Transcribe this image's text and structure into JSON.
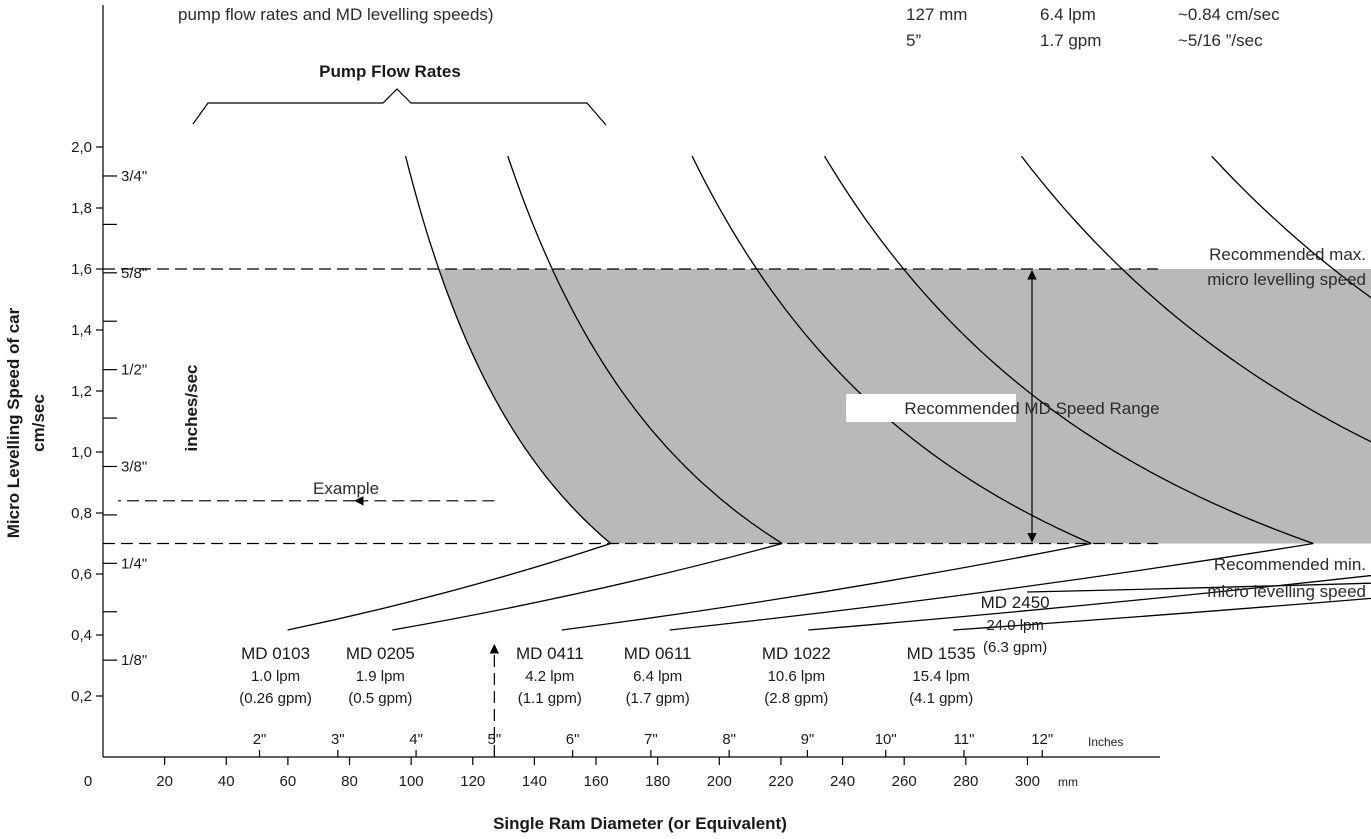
{
  "top_note": {
    "left_text": "pump flow rates and MD levelling speeds)",
    "table": [
      [
        "127 mm",
        "6.4 lpm",
        "~0.84 cm/sec"
      ],
      [
        "5”",
        "1.7 gpm",
        "~5/16 ”/sec"
      ]
    ]
  },
  "chart_data": {
    "type": "line",
    "title": "Pump Flow Rates",
    "xlabel": "Single Ram Diameter (or Equivalent)",
    "ylabel_line1": "Micro Levelling Speed of car",
    "ylabel_line2": "cm/sec",
    "ylabel_inches": "inches/sec",
    "xlim_mm": [
      0,
      330
    ],
    "ylim_cms": [
      0.05,
      2.05
    ],
    "x_ticks_mm": [
      0,
      20,
      40,
      60,
      80,
      100,
      120,
      140,
      160,
      180,
      200,
      220,
      240,
      260,
      280,
      300
    ],
    "x_tick_labels_mm": [
      "0",
      "20",
      "40",
      "60",
      "80",
      "100",
      "120",
      "140",
      "160",
      "180",
      "200",
      "220",
      "240",
      "260",
      "280",
      "300"
    ],
    "x_unit_mm": "mm",
    "x_ticks_in": [
      2,
      3,
      4,
      5,
      6,
      7,
      8,
      9,
      10,
      11,
      12
    ],
    "x_tick_labels_in": [
      "2\"",
      "3\"",
      "4\"",
      "5\"",
      "6\"",
      "7\"",
      "8\"",
      "9\"",
      "10\"",
      "11\"",
      "12\""
    ],
    "x_unit_in": "Inches",
    "y_ticks_cms": [
      0.2,
      0.4,
      0.6,
      0.8,
      1.0,
      1.2,
      1.4,
      1.6,
      1.8,
      2.0
    ],
    "y_tick_labels_cms": [
      "0,2",
      "0,4",
      "0,6",
      "0,8",
      "1,0",
      "1,2",
      "1,4",
      "1,6",
      "1,8",
      "2,0"
    ],
    "y_ticks_in": [
      0.125,
      0.25,
      0.375,
      0.5,
      0.625,
      0.75
    ],
    "y_tick_labels_in": [
      "1/8\"",
      "1/4\"",
      "3/8\"",
      "1/2\"",
      "5/8\"",
      "3/4\""
    ],
    "y_minor_ticks_in": [
      0.1875,
      0.3125,
      0.4375,
      0.5625,
      0.6875
    ],
    "series": [
      {
        "name": "MD 0103",
        "flow_lpm": "1.0 lpm",
        "flow_gpm": "(0.26 gpm)",
        "label_anchor_mm": 56
      },
      {
        "name": "MD 0205",
        "flow_lpm": "1.9 lpm",
        "flow_gpm": "(0.5 gpm)",
        "label_anchor_mm": 90
      },
      {
        "name": "MD 0411",
        "flow_lpm": "4.2 lpm",
        "flow_gpm": "(1.1 gpm)",
        "label_anchor_mm": 145
      },
      {
        "name": "MD 0611",
        "flow_lpm": "6.4 lpm",
        "flow_gpm": "(1.7 gpm)",
        "label_anchor_mm": 180
      },
      {
        "name": "MD 1022",
        "flow_lpm": "10.6 lpm",
        "flow_gpm": "(2.8 gpm)",
        "label_anchor_mm": 225
      },
      {
        "name": "MD 1535",
        "flow_lpm": "15.4 lpm",
        "flow_gpm": "(4.1 gpm)",
        "label_anchor_mm": 272
      },
      {
        "name": "MD 2450",
        "flow_lpm": "24.0 lpm",
        "flow_gpm": "(6.3 gpm)",
        "label_anchor_mm": 296
      }
    ],
    "curve_params": [
      {
        "k": 1.9,
        "c": 20
      },
      {
        "k": 3.4,
        "c": 25
      },
      {
        "k": 7.2,
        "c": 53
      },
      {
        "k": 10.8,
        "c": 67
      },
      {
        "k": 17.5,
        "c": 93
      },
      {
        "k": 25.5,
        "c": 118
      },
      {
        "k": 40.0,
        "c": 151
      }
    ],
    "recommended_max_cms": 1.6,
    "recommended_min_cms": 0.7,
    "recommended_max_label": [
      "Recommended max.",
      "micro levelling speed"
    ],
    "recommended_min_label": [
      "Recommended min.",
      "micro levelling speed"
    ],
    "range_label": "Recommended MD Speed Range",
    "example": {
      "label": "Example",
      "diameter_mm": 127,
      "speed_cms": 0.84
    }
  }
}
